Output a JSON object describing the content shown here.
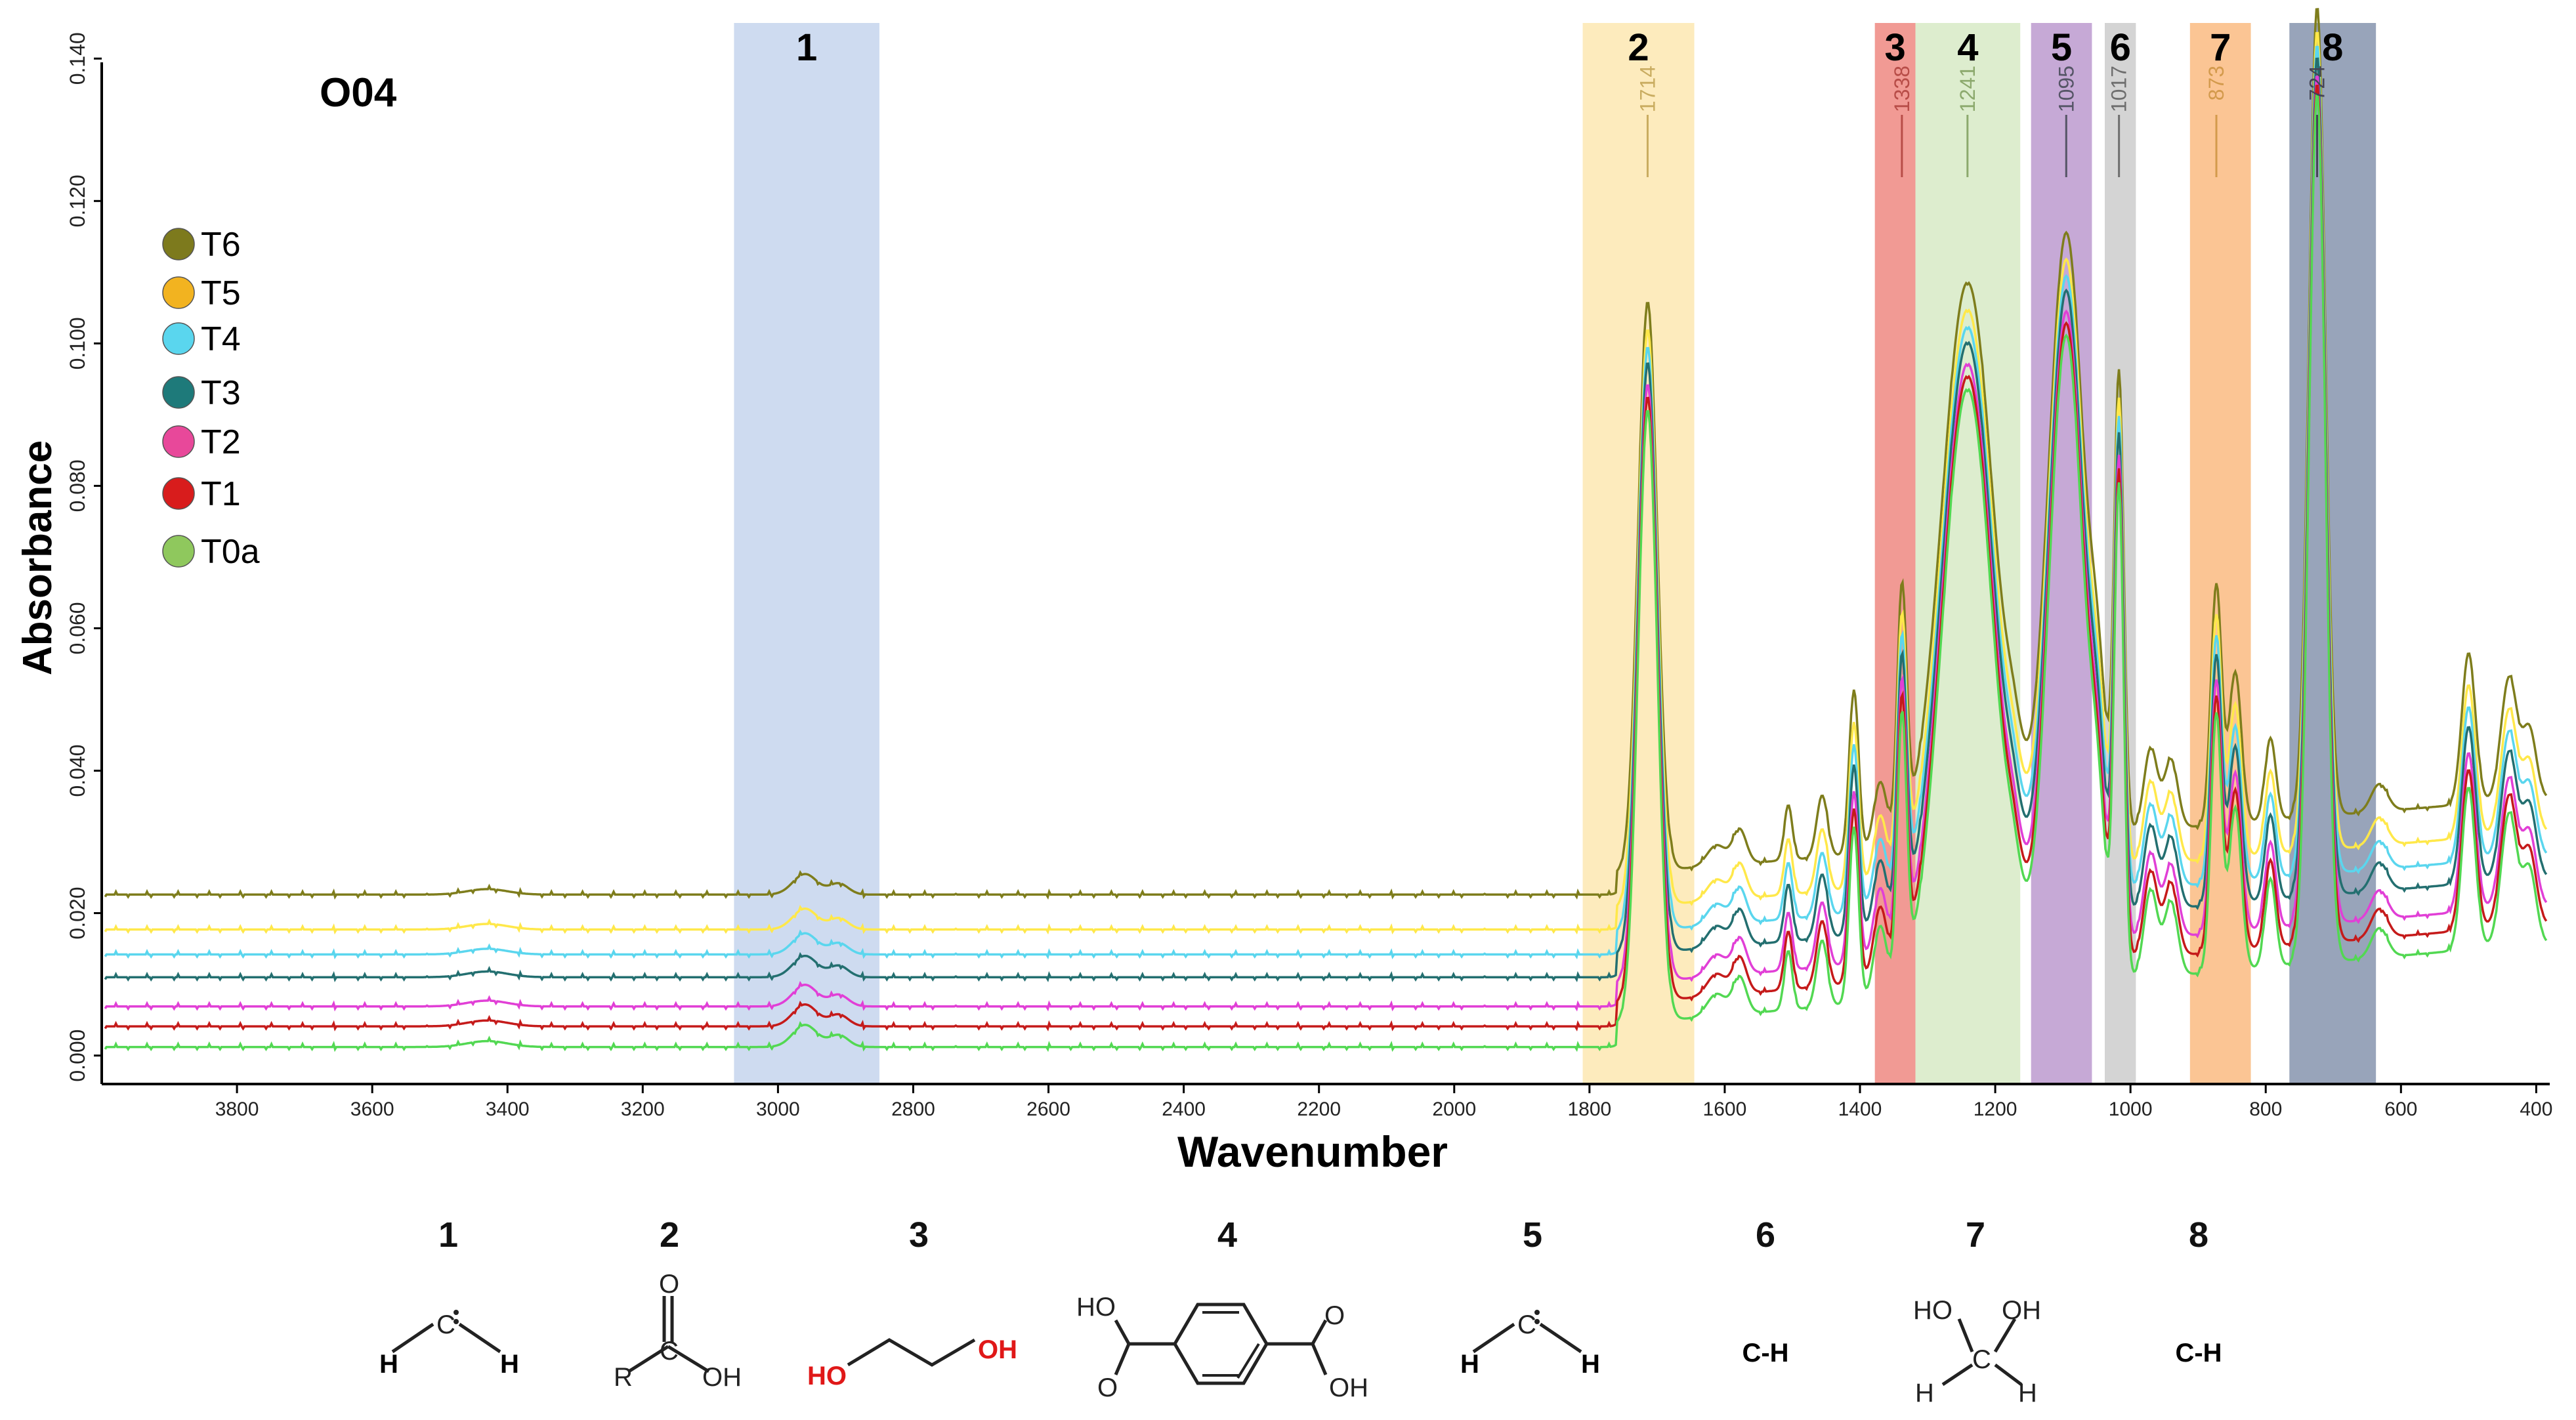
{
  "chart_data": {
    "type": "line",
    "title": "O04",
    "xlabel": "Wavenumber",
    "ylabel": "Absorbance",
    "xlim": [
      4000,
      380
    ],
    "ylim": [
      -0.004,
      0.145
    ],
    "x_ticks": [
      {
        "value": 3800,
        "label": "3800"
      },
      {
        "value": 3600,
        "label": "3600"
      },
      {
        "value": 3400,
        "label": "3400"
      },
      {
        "value": 3200,
        "label": "3200"
      },
      {
        "value": 3000,
        "label": "3000"
      },
      {
        "value": 2800,
        "label": "2800"
      },
      {
        "value": 2600,
        "label": "2600"
      },
      {
        "value": 2400,
        "label": "2400"
      },
      {
        "value": 2200,
        "label": "2200"
      },
      {
        "value": 2000,
        "label": "2000"
      },
      {
        "value": 1800,
        "label": "1800"
      },
      {
        "value": 1600,
        "label": "1600"
      },
      {
        "value": 1400,
        "label": "1400"
      },
      {
        "value": 1200,
        "label": "1200"
      },
      {
        "value": 1000,
        "label": "1000"
      },
      {
        "value": 800,
        "label": "800"
      },
      {
        "value": 600,
        "label": "600"
      },
      {
        "value": 400,
        "label": "400"
      }
    ],
    "y_ticks": [
      {
        "value": 0.0,
        "label": "0.000"
      },
      {
        "value": 0.02,
        "label": "0.020"
      },
      {
        "value": 0.04,
        "label": "0.040"
      },
      {
        "value": 0.06,
        "label": "0.060"
      },
      {
        "value": 0.08,
        "label": "0.080"
      },
      {
        "value": 0.1,
        "label": "0.100"
      },
      {
        "value": 0.12,
        "label": "0.120"
      },
      {
        "value": 0.14,
        "label": "0.140"
      }
    ],
    "bands": [
      {
        "label": "1",
        "from": 3065,
        "to": 2850,
        "color": "#c9d7ee"
      },
      {
        "label": "2",
        "from": 1810,
        "to": 1645,
        "color": "#fde9b6"
      },
      {
        "label": "3",
        "from": 1378,
        "to": 1318,
        "color": "#ef8f88"
      },
      {
        "label": "4",
        "from": 1318,
        "to": 1163,
        "color": "#d9ebc9"
      },
      {
        "label": "5",
        "from": 1147,
        "to": 1057,
        "color": "#c0a0d2"
      },
      {
        "label": "6",
        "from": 1038,
        "to": 992,
        "color": "#cfcfcf"
      },
      {
        "label": "7",
        "from": 912,
        "to": 822,
        "color": "#fbbf88"
      },
      {
        "label": "8",
        "from": 765,
        "to": 637,
        "color": "#8d9ab3"
      }
    ],
    "peaks": [
      {
        "x": 1714,
        "label": "1714",
        "color": "#c9ac60"
      },
      {
        "x": 1338,
        "label": "1338",
        "color": "#b84d48"
      },
      {
        "x": 1241,
        "label": "1241",
        "color": "#8ca96d"
      },
      {
        "x": 1095,
        "label": "1095",
        "color": "#555566"
      },
      {
        "x": 1017,
        "label": "1017",
        "color": "#6e6e6e"
      },
      {
        "x": 873,
        "label": "873",
        "color": "#d39a4c"
      },
      {
        "x": 724,
        "label": "724",
        "color": "#444455"
      }
    ],
    "series": [
      {
        "name": "T6",
        "color": "#7e7d1c",
        "offset": 0.0226
      },
      {
        "name": "T5",
        "color": "#ffe84a",
        "offset": 0.0177
      },
      {
        "name": "T4",
        "color": "#5ad6ee",
        "offset": 0.0142
      },
      {
        "name": "T3",
        "color": "#236f70",
        "offset": 0.011
      },
      {
        "name": "T2",
        "color": "#e13fd6",
        "offset": 0.0069
      },
      {
        "name": "T1",
        "color": "#c51a1a",
        "offset": 0.0041
      },
      {
        "name": "T0a",
        "color": "#52d852",
        "offset": 0.0012
      }
    ],
    "legend": [
      {
        "label": "T6",
        "color": "#7d7a1d"
      },
      {
        "label": "T5",
        "color": "#f2b320"
      },
      {
        "label": "T4",
        "color": "#5ad6ee"
      },
      {
        "label": "T3",
        "color": "#1e7a7a"
      },
      {
        "label": "T2",
        "color": "#e8489a"
      },
      {
        "label": "T1",
        "color": "#d81c1c"
      },
      {
        "label": "T0a",
        "color": "#8fc85d"
      }
    ],
    "legend_position": "top-left",
    "grid": false
  },
  "structures": [
    {
      "number": "1",
      "name": "methylene-carbene",
      "atoms": [
        "H",
        "C",
        "H"
      ]
    },
    {
      "number": "2",
      "name": "carboxylic-acid",
      "atoms": [
        "O",
        "R",
        "C",
        "OH"
      ]
    },
    {
      "number": "3",
      "name": "ethylene-glycol",
      "atoms": [
        "HO",
        "OH"
      ]
    },
    {
      "number": "4",
      "name": "terephthalic-acid",
      "atoms": [
        "HO",
        "O",
        "O",
        "OH"
      ]
    },
    {
      "number": "5",
      "name": "methylene-carbene-2",
      "atoms": [
        "H",
        "C",
        "H"
      ]
    },
    {
      "number": "6",
      "name": "c-h-bond",
      "text": "C-H"
    },
    {
      "number": "7",
      "name": "methanediol",
      "atoms": [
        "HO",
        "OH",
        "C",
        "H",
        "H"
      ]
    },
    {
      "number": "8",
      "name": "c-h-bond-2",
      "text": "C-H"
    }
  ]
}
